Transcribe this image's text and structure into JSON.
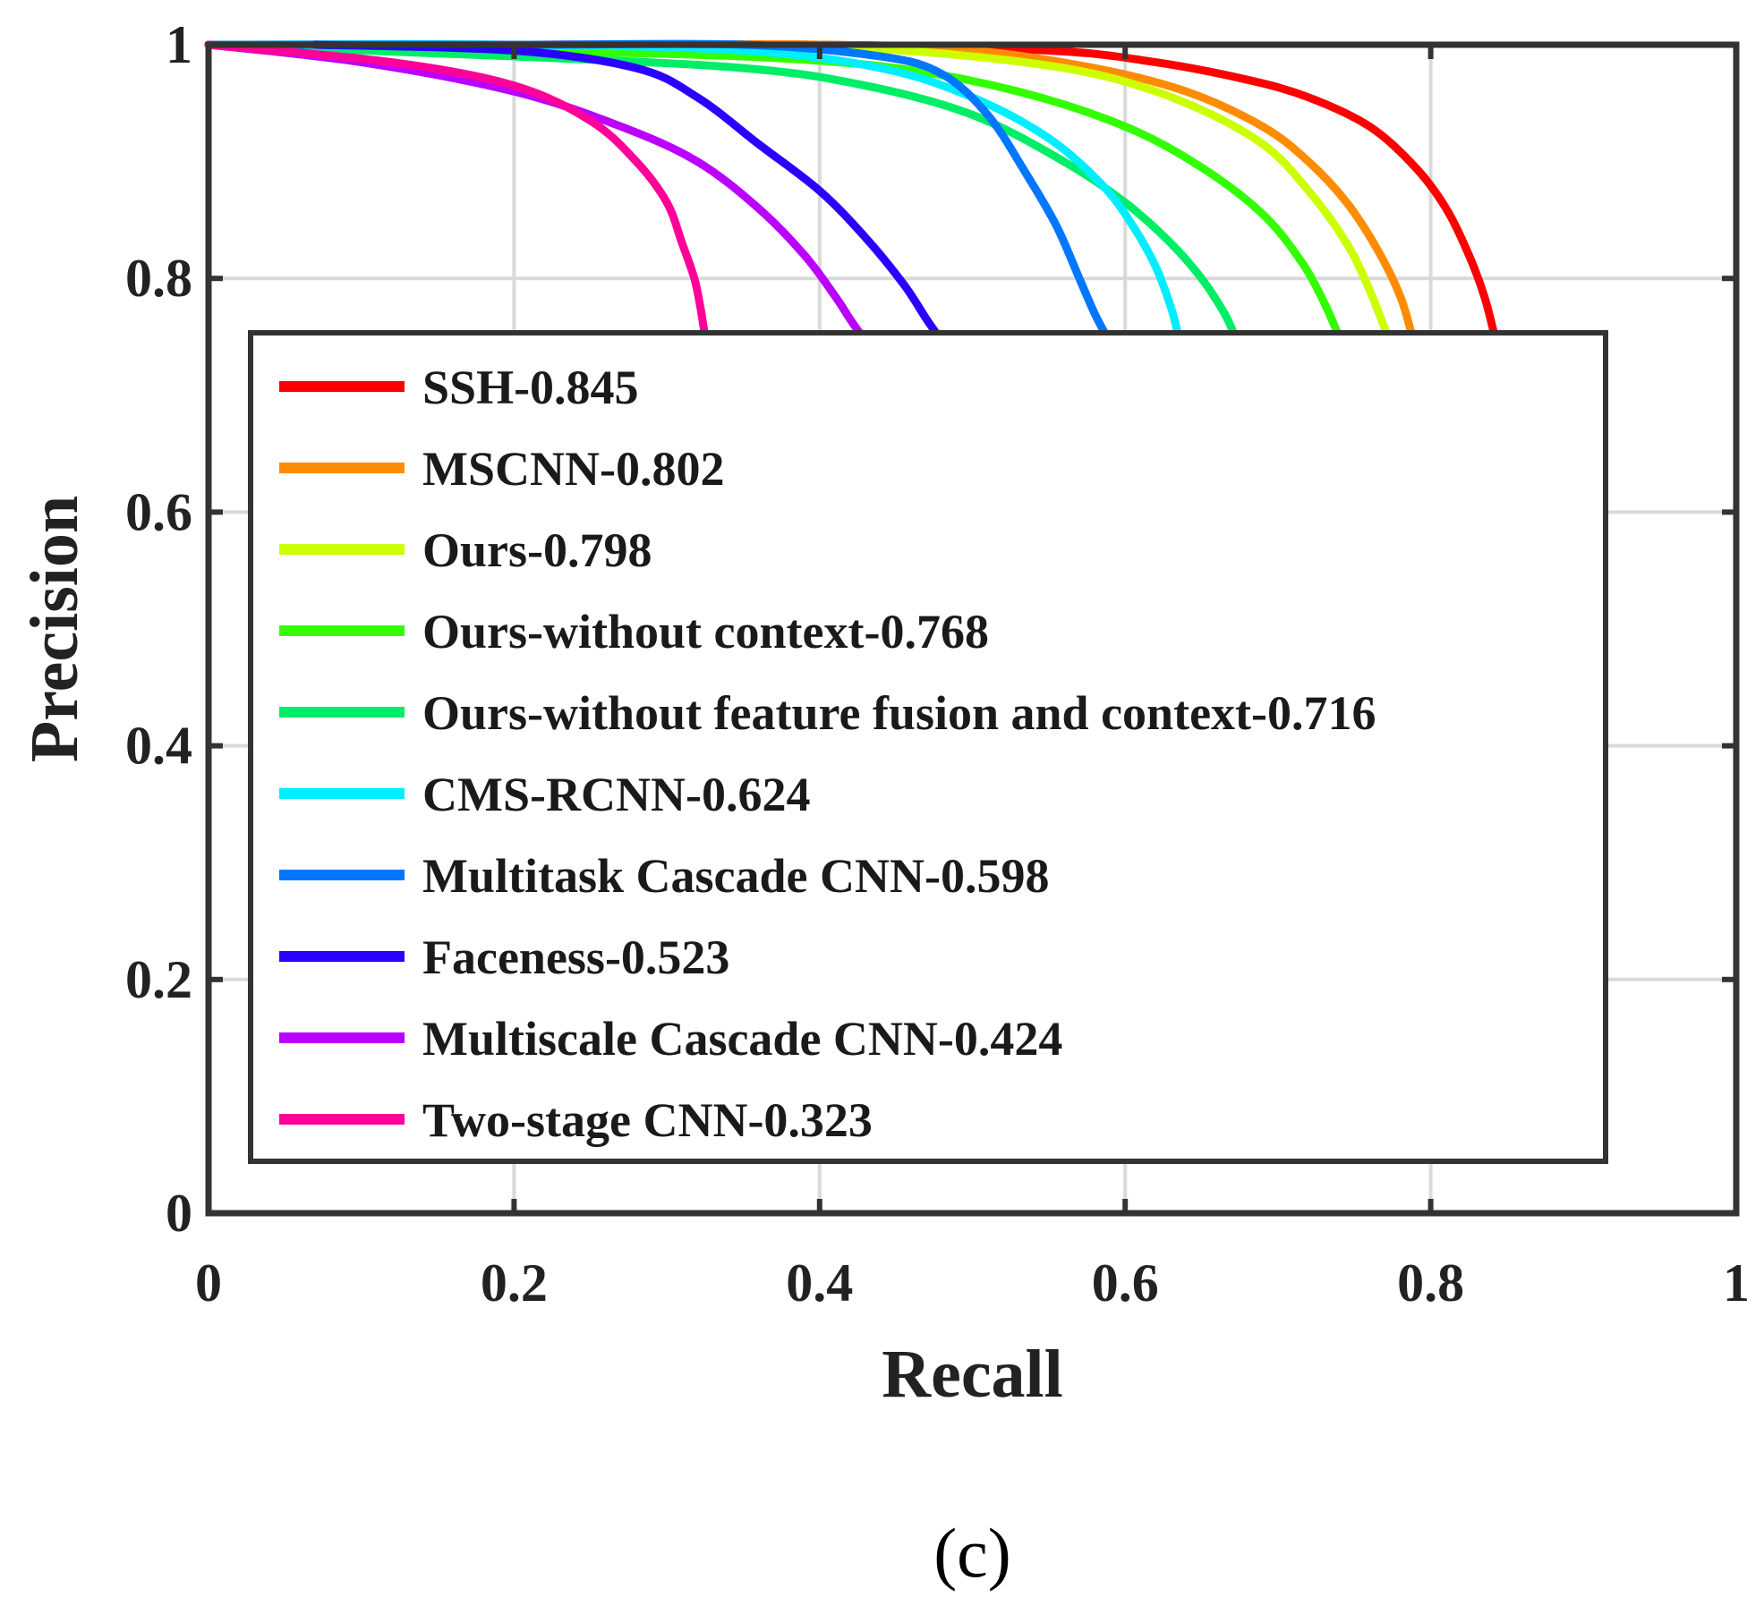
{
  "chart_data": {
    "type": "line",
    "title": "",
    "xlabel": "Recall",
    "ylabel": "Precision",
    "xlim": [
      0,
      1
    ],
    "ylim": [
      0,
      1
    ],
    "grid": true,
    "legend_position": "center",
    "xticks": [
      "0",
      "0.2",
      "0.4",
      "0.6",
      "0.8",
      "1"
    ],
    "yticks": [
      "0",
      "0.2",
      "0.4",
      "0.6",
      "0.8",
      "1"
    ],
    "caption": "(c)",
    "series": [
      {
        "name": "SSH-0.845",
        "color": "#ff0000",
        "x": [
          0,
          0.2,
          0.4,
          0.55,
          0.62,
          0.68,
          0.72,
          0.76,
          0.79,
          0.81,
          0.825,
          0.835,
          0.842
        ],
        "y": [
          1,
          1,
          1,
          0.995,
          0.985,
          0.97,
          0.955,
          0.93,
          0.895,
          0.86,
          0.82,
          0.785,
          0.75
        ]
      },
      {
        "name": "MSCNN-0.802",
        "color": "#ff8c00",
        "x": [
          0,
          0.2,
          0.4,
          0.5,
          0.58,
          0.64,
          0.69,
          0.72,
          0.745,
          0.765,
          0.78,
          0.788
        ],
        "y": [
          1,
          1,
          1,
          0.995,
          0.98,
          0.96,
          0.93,
          0.9,
          0.865,
          0.825,
          0.785,
          0.75
        ]
      },
      {
        "name": "Ours-0.798",
        "color": "#ccff00",
        "x": [
          0,
          0.2,
          0.4,
          0.5,
          0.58,
          0.64,
          0.69,
          0.72,
          0.745,
          0.76,
          0.772
        ],
        "y": [
          1,
          1,
          0.998,
          0.99,
          0.975,
          0.95,
          0.915,
          0.875,
          0.83,
          0.79,
          0.75
        ]
      },
      {
        "name": "Ours-without context-0.768",
        "color": "#33ff00",
        "x": [
          0,
          0.2,
          0.35,
          0.45,
          0.53,
          0.6,
          0.65,
          0.69,
          0.715,
          0.73,
          0.74
        ],
        "y": [
          1,
          0.995,
          0.99,
          0.98,
          0.96,
          0.93,
          0.895,
          0.855,
          0.815,
          0.78,
          0.75
        ]
      },
      {
        "name": "Ours-without feature fusion and context-0.716",
        "color": "#00ee66",
        "x": [
          0,
          0.2,
          0.35,
          0.43,
          0.5,
          0.56,
          0.6,
          0.63,
          0.65,
          0.665,
          0.672
        ],
        "y": [
          1,
          0.99,
          0.98,
          0.965,
          0.94,
          0.9,
          0.865,
          0.83,
          0.8,
          0.77,
          0.75
        ]
      },
      {
        "name": "CMS-RCNN-0.624",
        "color": "#00eeff",
        "x": [
          0,
          0.2,
          0.35,
          0.44,
          0.5,
          0.55,
          0.585,
          0.605,
          0.62,
          0.63,
          0.635
        ],
        "y": [
          1,
          1,
          0.995,
          0.98,
          0.955,
          0.92,
          0.88,
          0.845,
          0.81,
          0.775,
          0.75
        ]
      },
      {
        "name": "Multitask Cascade CNN-0.598",
        "color": "#0077ff",
        "x": [
          0,
          0.2,
          0.35,
          0.44,
          0.48,
          0.51,
          0.535,
          0.555,
          0.57,
          0.58,
          0.588
        ],
        "y": [
          1,
          1,
          1,
          0.99,
          0.975,
          0.94,
          0.89,
          0.845,
          0.8,
          0.77,
          0.75
        ]
      },
      {
        "name": "Faceness-0.523",
        "color": "#2a00ff",
        "x": [
          0.07,
          0.2,
          0.28,
          0.32,
          0.36,
          0.4,
          0.43,
          0.455,
          0.47,
          0.478
        ],
        "y": [
          1,
          0.995,
          0.98,
          0.955,
          0.915,
          0.875,
          0.835,
          0.795,
          0.765,
          0.75
        ]
      },
      {
        "name": "Multiscale Cascade CNN-0.424",
        "color": "#bb00ff",
        "x": [
          0,
          0.1,
          0.2,
          0.27,
          0.32,
          0.36,
          0.39,
          0.41,
          0.42,
          0.428
        ],
        "y": [
          1,
          0.985,
          0.96,
          0.93,
          0.9,
          0.86,
          0.82,
          0.785,
          0.765,
          0.75
        ]
      },
      {
        "name": "Two-stage CNN-0.323",
        "color": "#ff0099",
        "x": [
          0,
          0.12,
          0.2,
          0.25,
          0.28,
          0.3,
          0.31,
          0.318,
          0.322,
          0.325
        ],
        "y": [
          1,
          0.985,
          0.965,
          0.935,
          0.9,
          0.865,
          0.83,
          0.8,
          0.775,
          0.75
        ]
      }
    ]
  }
}
